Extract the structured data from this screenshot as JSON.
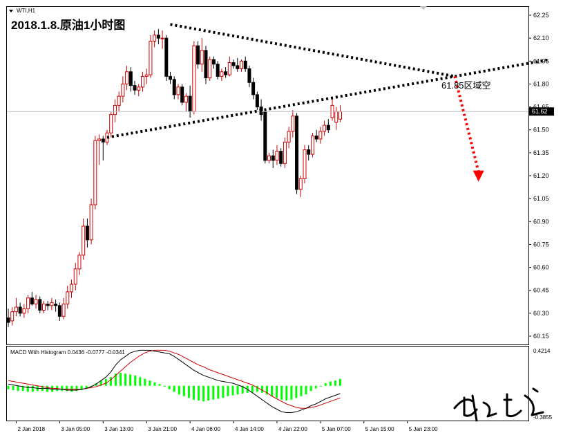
{
  "symbol_label": "WTI,H1",
  "chart_title": "2018.1.8.原油1小时图",
  "annotation": "61.85区域空",
  "current_price": "61.62",
  "macd_label": "MACD With Histogram 0.0436 -0.0777 -0.0341",
  "macd_axis_top": "0.4214",
  "macd_axis_bottom": "-0.3855",
  "colors": {
    "up": "#cc0000",
    "down": "#000000",
    "macd_line": "#000000",
    "signal_line": "#cc0000",
    "histogram": "#00ff00",
    "annotation_arrow": "#ff0000"
  },
  "chart_data": [
    {
      "type": "candlestick",
      "title": "2018.1.8.原油1小时图",
      "ylim": [
        60.12,
        62.3
      ],
      "y_ticks": [
        "62.25",
        "62.10",
        "61.95",
        "61.80",
        "61.65",
        "61.50",
        "61.35",
        "61.20",
        "61.05",
        "60.90",
        "60.75",
        "60.60",
        "60.45",
        "60.30",
        "60.15"
      ],
      "y_tick_values": [
        62.25,
        62.1,
        61.95,
        61.8,
        61.65,
        61.5,
        61.35,
        61.2,
        61.05,
        60.9,
        60.75,
        60.6,
        60.45,
        60.3,
        60.15
      ],
      "x_ticks": [
        {
          "label": "2 Jan 2018",
          "index": 2
        },
        {
          "label": "3 Jan 05:00",
          "index": 13
        },
        {
          "label": "3 Jan 13:00",
          "index": 24
        },
        {
          "label": "3 Jan 21:00",
          "index": 35
        },
        {
          "label": "4 Jan 06:00",
          "index": 46
        },
        {
          "label": "4 Jan 14:00",
          "index": 57
        },
        {
          "label": "4 Jan 22:00",
          "index": 68
        },
        {
          "label": "5 Jan 07:00",
          "index": 79
        },
        {
          "label": "5 Jan 15:00",
          "index": 90
        },
        {
          "label": "5 Jan 23:00",
          "index": 101
        }
      ],
      "candles": [
        [
          60.27,
          60.33,
          60.21,
          60.24
        ],
        [
          60.25,
          60.34,
          60.22,
          60.31
        ],
        [
          60.31,
          60.4,
          60.28,
          60.34
        ],
        [
          60.34,
          60.37,
          60.28,
          60.3
        ],
        [
          60.3,
          60.36,
          60.27,
          60.33
        ],
        [
          60.33,
          60.42,
          60.3,
          60.4
        ],
        [
          60.4,
          60.44,
          60.35,
          60.36
        ],
        [
          60.36,
          60.42,
          60.33,
          60.39
        ],
        [
          60.39,
          60.41,
          60.3,
          60.32
        ],
        [
          60.32,
          60.38,
          60.3,
          60.36
        ],
        [
          60.36,
          60.38,
          60.32,
          60.35
        ],
        [
          60.35,
          60.4,
          60.32,
          60.37
        ],
        [
          60.36,
          60.39,
          60.31,
          60.35
        ],
        [
          60.35,
          60.37,
          60.25,
          60.28
        ],
        [
          60.28,
          60.4,
          60.26,
          60.36
        ],
        [
          60.36,
          60.48,
          60.33,
          60.44
        ],
        [
          60.44,
          60.52,
          60.4,
          60.49
        ],
        [
          60.49,
          60.63,
          60.45,
          60.59
        ],
        [
          60.59,
          60.7,
          60.55,
          60.68
        ],
        [
          60.68,
          60.92,
          60.65,
          60.87
        ],
        [
          60.87,
          60.92,
          60.73,
          60.78
        ],
        [
          60.78,
          61.05,
          60.75,
          61.01
        ],
        [
          61.01,
          61.46,
          60.98,
          61.43
        ],
        [
          61.43,
          61.47,
          61.27,
          61.44
        ],
        [
          61.44,
          61.46,
          61.3,
          61.42
        ],
        [
          61.42,
          61.5,
          61.4,
          61.48
        ],
        [
          61.48,
          61.62,
          61.45,
          61.6
        ],
        [
          61.6,
          61.7,
          61.55,
          61.66
        ],
        [
          61.66,
          61.75,
          61.62,
          61.72
        ],
        [
          61.72,
          61.85,
          61.68,
          61.8
        ],
        [
          61.8,
          61.92,
          61.76,
          61.88
        ],
        [
          61.88,
          61.91,
          61.75,
          61.79
        ],
        [
          61.79,
          61.82,
          61.73,
          61.76
        ],
        [
          61.76,
          61.8,
          61.72,
          61.78
        ],
        [
          61.78,
          61.88,
          61.75,
          61.85
        ],
        [
          61.85,
          61.9,
          61.8,
          61.86
        ],
        [
          61.86,
          62.12,
          61.84,
          62.08
        ],
        [
          62.08,
          62.15,
          62.04,
          62.12
        ],
        [
          62.12,
          62.16,
          62.06,
          62.1
        ],
        [
          62.1,
          62.15,
          62.03,
          62.1
        ],
        [
          62.1,
          62.12,
          61.82,
          61.85
        ],
        [
          61.85,
          61.88,
          61.8,
          61.83
        ],
        [
          61.83,
          61.85,
          61.7,
          61.73
        ],
        [
          61.73,
          61.8,
          61.7,
          61.78
        ],
        [
          61.78,
          61.8,
          61.66,
          61.68
        ],
        [
          61.68,
          61.74,
          61.62,
          61.72
        ],
        [
          61.72,
          61.79,
          61.58,
          61.62
        ],
        [
          61.62,
          62.08,
          61.6,
          62.05
        ],
        [
          62.05,
          62.08,
          61.9,
          61.93
        ],
        [
          61.93,
          62.1,
          61.88,
          62.02
        ],
        [
          62.02,
          62.05,
          61.8,
          61.84
        ],
        [
          61.84,
          61.98,
          61.82,
          61.96
        ],
        [
          61.96,
          61.98,
          61.9,
          61.93
        ],
        [
          61.93,
          61.95,
          61.83,
          61.85
        ],
        [
          61.85,
          61.9,
          61.82,
          61.88
        ],
        [
          61.88,
          61.91,
          61.84,
          61.86
        ],
        [
          61.86,
          61.98,
          61.85,
          61.94
        ],
        [
          61.94,
          61.96,
          61.9,
          61.92
        ],
        [
          61.92,
          61.97,
          61.88,
          61.9
        ],
        [
          61.9,
          61.96,
          61.88,
          61.95
        ],
        [
          61.95,
          61.98,
          61.88,
          61.9
        ],
        [
          61.9,
          61.92,
          61.78,
          61.81
        ],
        [
          61.81,
          61.84,
          61.7,
          61.73
        ],
        [
          61.73,
          61.75,
          61.63,
          61.65
        ],
        [
          61.65,
          61.7,
          61.56,
          61.6
        ],
        [
          61.62,
          61.64,
          61.28,
          61.3
        ],
        [
          61.3,
          61.35,
          61.28,
          61.33
        ],
        [
          61.33,
          61.37,
          61.25,
          61.3
        ],
        [
          61.3,
          61.4,
          61.27,
          61.36
        ],
        [
          61.36,
          61.38,
          61.26,
          61.28
        ],
        [
          61.28,
          61.45,
          61.25,
          61.42
        ],
        [
          61.42,
          61.52,
          61.38,
          61.49
        ],
        [
          61.49,
          61.63,
          61.45,
          61.59
        ],
        [
          61.59,
          61.61,
          61.08,
          61.11
        ],
        [
          61.11,
          61.2,
          61.06,
          61.18
        ],
        [
          61.18,
          61.4,
          61.15,
          61.37
        ],
        [
          61.37,
          61.4,
          61.3,
          61.34
        ],
        [
          61.34,
          61.48,
          61.32,
          61.46
        ],
        [
          61.46,
          61.5,
          61.42,
          61.44
        ],
        [
          61.44,
          61.52,
          61.41,
          61.49
        ],
        [
          61.49,
          61.56,
          61.46,
          61.53
        ],
        [
          61.53,
          61.57,
          61.48,
          61.5
        ],
        [
          61.58,
          61.7,
          61.56,
          61.66
        ],
        [
          61.55,
          61.65,
          61.5,
          61.62
        ],
        [
          61.57,
          61.66,
          61.55,
          61.62
        ]
      ],
      "annotations": [
        {
          "type": "trendline",
          "style": "dotted",
          "from": {
            "index": 41,
            "price": 62.19
          },
          "to": {
            "index": 113,
            "price": 61.85
          },
          "color": "#000000"
        },
        {
          "type": "trendline",
          "style": "dotted",
          "from": {
            "index": 25,
            "price": 61.45
          },
          "to": {
            "index": 113,
            "price": 61.85
          },
          "color": "#000000"
        },
        {
          "type": "trendline",
          "style": "dotted",
          "from": {
            "index": 113,
            "price": 61.85
          },
          "to": {
            "index": 137,
            "price": 61.96
          },
          "color": "#000000"
        },
        {
          "type": "arrow",
          "style": "dotted",
          "from": {
            "index": 113,
            "price": 61.85
          },
          "to": {
            "index": 119,
            "price": 61.17
          },
          "color": "#ff0000"
        }
      ]
    },
    {
      "type": "macd",
      "title": "MACD With Histogram 0.0436 -0.0777 -0.0341",
      "ylim": [
        -0.3855,
        0.4214
      ],
      "histogram": [
        -0.04,
        -0.05,
        -0.06,
        -0.06,
        -0.07,
        -0.07,
        -0.06,
        -0.06,
        -0.07,
        -0.07,
        -0.06,
        -0.06,
        -0.06,
        -0.07,
        -0.06,
        -0.05,
        -0.03,
        0.0,
        0.03,
        0.06,
        0.08,
        0.1,
        0.14,
        0.15,
        0.14,
        0.13,
        0.12,
        0.1,
        0.08,
        0.06,
        0.04,
        0.02,
        -0.01,
        -0.04,
        -0.07,
        -0.1,
        -0.12,
        -0.14,
        -0.16,
        -0.17,
        -0.18,
        -0.17,
        -0.16,
        -0.15,
        -0.14,
        -0.12,
        -0.11,
        -0.1,
        -0.09,
        -0.08,
        -0.08,
        -0.07,
        -0.08,
        -0.1,
        -0.12,
        -0.14,
        -0.16,
        -0.17,
        -0.16,
        -0.14,
        -0.12,
        -0.1,
        -0.06,
        -0.03,
        0.0,
        0.03,
        0.05,
        0.06,
        0.08
      ],
      "macd": [
        0.02,
        0.01,
        0.0,
        -0.01,
        -0.02,
        -0.02,
        -0.03,
        -0.03,
        -0.03,
        -0.04,
        -0.04,
        -0.04,
        -0.05,
        -0.05,
        -0.05,
        -0.04,
        -0.03,
        -0.01,
        0.02,
        0.06,
        0.1,
        0.16,
        0.24,
        0.3,
        0.34,
        0.38,
        0.4,
        0.41,
        0.41,
        0.41,
        0.4,
        0.39,
        0.38,
        0.37,
        0.34,
        0.3,
        0.26,
        0.22,
        0.18,
        0.15,
        0.12,
        0.1,
        0.08,
        0.06,
        0.05,
        0.04,
        0.03,
        0.01,
        -0.01,
        -0.04,
        -0.08,
        -0.12,
        -0.16,
        -0.2,
        -0.24,
        -0.27,
        -0.3,
        -0.31,
        -0.31,
        -0.3,
        -0.28,
        -0.26,
        -0.23,
        -0.21,
        -0.18,
        -0.15,
        -0.13,
        -0.11,
        -0.09
      ],
      "signal": [
        0.06,
        0.05,
        0.04,
        0.03,
        0.02,
        0.01,
        0.0,
        -0.01,
        -0.02,
        -0.03,
        -0.03,
        -0.04,
        -0.04,
        -0.04,
        -0.04,
        -0.04,
        -0.03,
        -0.02,
        -0.01,
        0.01,
        0.03,
        0.07,
        0.12,
        0.17,
        0.22,
        0.27,
        0.31,
        0.35,
        0.38,
        0.4,
        0.41,
        0.41,
        0.41,
        0.4,
        0.38,
        0.36,
        0.33,
        0.3,
        0.27,
        0.24,
        0.22,
        0.19,
        0.17,
        0.15,
        0.13,
        0.11,
        0.09,
        0.07,
        0.05,
        0.03,
        0.01,
        -0.02,
        -0.05,
        -0.08,
        -0.12,
        -0.15,
        -0.18,
        -0.21,
        -0.23,
        -0.25,
        -0.26,
        -0.26,
        -0.25,
        -0.24,
        -0.22,
        -0.2,
        -0.18,
        -0.16,
        -0.14
      ]
    }
  ]
}
